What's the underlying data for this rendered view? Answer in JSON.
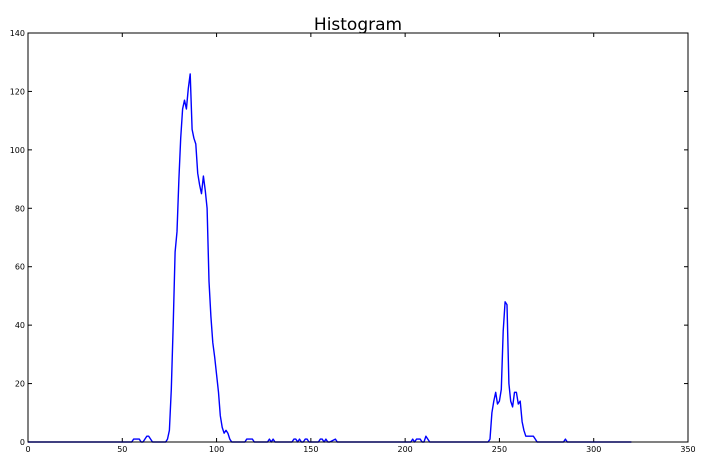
{
  "chart_data": {
    "type": "line",
    "title": "Histogram",
    "xlabel": "",
    "ylabel": "",
    "xlim": [
      0,
      350
    ],
    "ylim": [
      0,
      140
    ],
    "xticks": [
      "0",
      "50",
      "100",
      "150",
      "200",
      "250",
      "300",
      "350"
    ],
    "yticks": [
      "0",
      "20",
      "40",
      "60",
      "80",
      "100",
      "120",
      "140"
    ],
    "grid": false,
    "legend": "none",
    "series": [
      {
        "color": "#0000ff",
        "x": [
          0,
          53,
          55,
          56,
          57,
          58,
          59,
          60,
          61,
          62,
          63,
          64,
          65,
          66,
          67,
          68,
          69,
          70,
          71,
          72,
          73,
          74,
          75,
          76,
          77,
          78,
          79,
          80,
          81,
          82,
          83,
          84,
          85,
          86,
          87,
          88,
          89,
          90,
          91,
          92,
          93,
          94,
          95,
          96,
          97,
          98,
          99,
          100,
          101,
          102,
          103,
          104,
          105,
          106,
          107,
          108,
          109,
          110,
          111,
          112,
          113,
          114,
          115,
          116,
          117,
          118,
          119,
          120,
          121,
          122,
          123,
          124,
          125,
          126,
          127,
          128,
          129,
          130,
          131,
          140,
          141,
          142,
          143,
          144,
          145,
          146,
          147,
          148,
          149,
          154,
          155,
          156,
          157,
          158,
          159,
          160,
          163,
          164,
          165,
          203,
          204,
          205,
          206,
          207,
          208,
          209,
          210,
          211,
          212,
          213,
          214,
          215,
          244,
          245,
          246,
          247,
          248,
          249,
          250,
          251,
          252,
          253,
          254,
          255,
          256,
          257,
          258,
          259,
          260,
          261,
          262,
          263,
          264,
          265,
          266,
          267,
          268,
          269,
          270,
          284,
          285,
          286,
          287,
          320
        ],
        "y": [
          0,
          0,
          0,
          1,
          1,
          1,
          1,
          0,
          0,
          1,
          2,
          2,
          1,
          0,
          0,
          0,
          0,
          0,
          0,
          0,
          0,
          1,
          4,
          18,
          40,
          65,
          72,
          90,
          104,
          114,
          117,
          114,
          121,
          126,
          107,
          104,
          102,
          92,
          88,
          85,
          91,
          86,
          80,
          55,
          43,
          34,
          29,
          23,
          17,
          9,
          5,
          3,
          4,
          3,
          1,
          0,
          0,
          0,
          0,
          0,
          0,
          0,
          0,
          1,
          1,
          1,
          1,
          0,
          0,
          0,
          0,
          0,
          0,
          0,
          0,
          1,
          0,
          1,
          0,
          0,
          1,
          1,
          0,
          1,
          0,
          0,
          1,
          1,
          0,
          0,
          1,
          1,
          0,
          1,
          0,
          0,
          1,
          0,
          0,
          0,
          1,
          0,
          1,
          1,
          1,
          0,
          0,
          2,
          1,
          0,
          0,
          0,
          0,
          1,
          10,
          14,
          17,
          13,
          14,
          18,
          38,
          48,
          47,
          20,
          14,
          12,
          17,
          17,
          13,
          14,
          7,
          4,
          2,
          2,
          2,
          2,
          2,
          1,
          0,
          0,
          1,
          0,
          0,
          0
        ]
      }
    ]
  }
}
